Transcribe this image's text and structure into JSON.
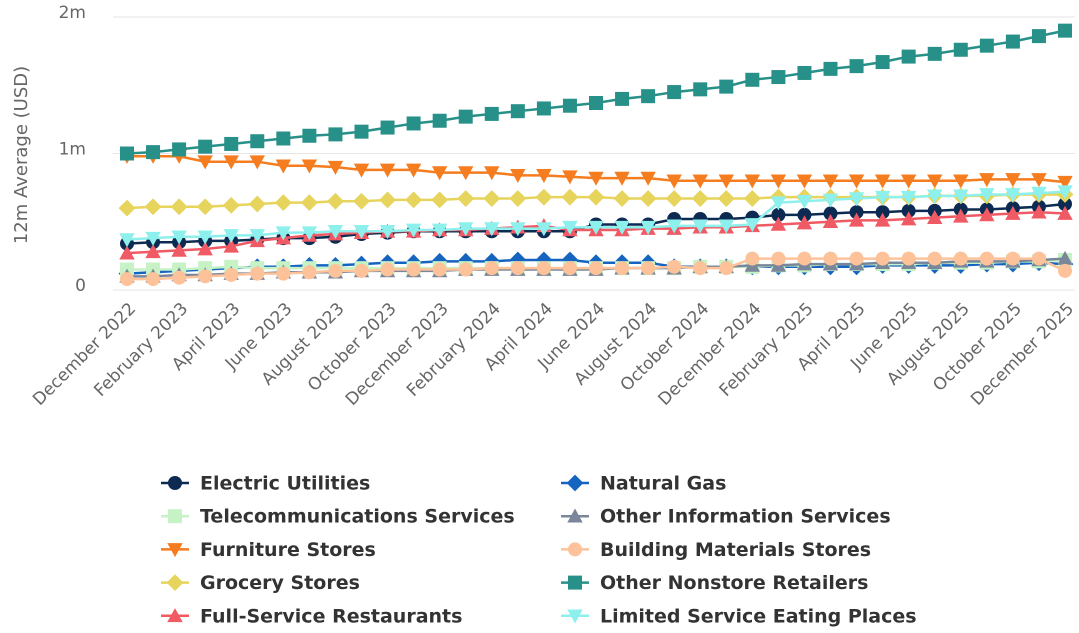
{
  "chart_data": {
    "type": "line",
    "y_label": "12m Average (USD)",
    "categories": [
      "December 2022",
      null,
      "February 2023",
      null,
      "April 2023",
      null,
      "June 2023",
      null,
      "August 2023",
      null,
      "October 2023",
      null,
      "December 2023",
      null,
      "February 2024",
      null,
      "April 2024",
      null,
      "June 2024",
      null,
      "August 2024",
      null,
      "October 2024",
      null,
      "December 2024",
      null,
      "February 2025",
      null,
      "April 2025",
      null,
      "June 2025",
      null,
      "August 2025",
      null,
      "October 2025",
      null,
      "December 2025"
    ],
    "ylim": [
      0,
      2000000
    ],
    "yticks": [
      0,
      {
        "value": 1000000,
        "label": "1m"
      },
      {
        "value": 2000000,
        "label": "2m"
      }
    ],
    "grid": true,
    "legend": "bottom",
    "series": [
      {
        "name": "Electric Utilities",
        "color": "#0d2b52",
        "marker": "circle",
        "values": [
          340000,
          350000,
          350000,
          360000,
          360000,
          370000,
          380000,
          380000,
          390000,
          410000,
          420000,
          430000,
          430000,
          430000,
          430000,
          430000,
          430000,
          430000,
          480000,
          480000,
          480000,
          520000,
          520000,
          520000,
          530000,
          550000,
          550000,
          560000,
          570000,
          570000,
          580000,
          580000,
          590000,
          590000,
          600000,
          610000,
          630000
        ]
      },
      {
        "name": "Natural Gas",
        "color": "#1565c0",
        "marker": "diamond",
        "values": [
          120000,
          130000,
          140000,
          150000,
          160000,
          170000,
          170000,
          180000,
          180000,
          190000,
          200000,
          200000,
          210000,
          210000,
          210000,
          220000,
          220000,
          220000,
          200000,
          200000,
          200000,
          170000,
          170000,
          170000,
          170000,
          170000,
          170000,
          170000,
          170000,
          180000,
          180000,
          180000,
          180000,
          190000,
          190000,
          200000,
          190000
        ]
      },
      {
        "name": "Telecommunications Services",
        "color": "#c6f2c6",
        "marker": "square",
        "values": [
          150000,
          150000,
          150000,
          160000,
          170000,
          160000,
          160000,
          160000,
          160000,
          160000,
          160000,
          160000,
          160000,
          160000,
          160000,
          160000,
          160000,
          160000,
          160000,
          160000,
          160000,
          160000,
          170000,
          170000,
          170000,
          180000,
          180000,
          190000,
          190000,
          190000,
          190000,
          200000,
          200000,
          200000,
          210000,
          210000,
          220000
        ]
      },
      {
        "name": "Other Information Services",
        "color": "#7a8699",
        "marker": "triangle",
        "values": [
          100000,
          100000,
          110000,
          110000,
          120000,
          120000,
          130000,
          130000,
          130000,
          140000,
          140000,
          140000,
          140000,
          150000,
          150000,
          150000,
          150000,
          150000,
          150000,
          160000,
          160000,
          160000,
          170000,
          170000,
          180000,
          180000,
          190000,
          190000,
          190000,
          200000,
          200000,
          200000,
          210000,
          210000,
          210000,
          220000,
          230000
        ]
      },
      {
        "name": "Furniture Stores",
        "color": "#f57c1f",
        "marker": "triangle-down",
        "values": [
          980000,
          980000,
          980000,
          940000,
          940000,
          940000,
          910000,
          910000,
          900000,
          880000,
          880000,
          880000,
          860000,
          860000,
          860000,
          840000,
          840000,
          830000,
          820000,
          820000,
          820000,
          800000,
          800000,
          800000,
          800000,
          800000,
          800000,
          800000,
          800000,
          800000,
          800000,
          800000,
          800000,
          810000,
          810000,
          810000,
          790000
        ]
      },
      {
        "name": "Building Materials Stores",
        "color": "#fdc299",
        "marker": "circle",
        "values": [
          80000,
          80000,
          90000,
          100000,
          110000,
          120000,
          120000,
          130000,
          140000,
          140000,
          150000,
          150000,
          150000,
          150000,
          160000,
          160000,
          160000,
          160000,
          160000,
          160000,
          160000,
          170000,
          160000,
          160000,
          230000,
          230000,
          230000,
          230000,
          230000,
          230000,
          230000,
          230000,
          230000,
          230000,
          230000,
          230000,
          140000
        ]
      },
      {
        "name": "Grocery Stores",
        "color": "#e6d45c",
        "marker": "diamond",
        "values": [
          600000,
          610000,
          610000,
          610000,
          620000,
          630000,
          640000,
          640000,
          650000,
          650000,
          660000,
          660000,
          660000,
          670000,
          670000,
          670000,
          680000,
          680000,
          680000,
          670000,
          670000,
          670000,
          670000,
          670000,
          670000,
          680000,
          680000,
          680000,
          680000,
          680000,
          680000,
          690000,
          690000,
          690000,
          700000,
          700000,
          700000
        ]
      },
      {
        "name": "Other Nonstore Retailers",
        "color": "#279088",
        "marker": "square",
        "values": [
          1000000,
          1010000,
          1030000,
          1050000,
          1070000,
          1090000,
          1110000,
          1130000,
          1140000,
          1160000,
          1190000,
          1220000,
          1240000,
          1270000,
          1290000,
          1310000,
          1330000,
          1350000,
          1370000,
          1400000,
          1420000,
          1450000,
          1470000,
          1490000,
          1540000,
          1560000,
          1590000,
          1620000,
          1640000,
          1670000,
          1710000,
          1730000,
          1760000,
          1790000,
          1820000,
          1860000,
          1900000
        ]
      },
      {
        "name": "Full-Service Restaurants",
        "color": "#f05a64",
        "marker": "triangle",
        "values": [
          270000,
          280000,
          290000,
          300000,
          320000,
          360000,
          380000,
          400000,
          410000,
          420000,
          430000,
          430000,
          440000,
          440000,
          450000,
          460000,
          470000,
          440000,
          440000,
          440000,
          450000,
          450000,
          460000,
          460000,
          470000,
          480000,
          490000,
          500000,
          510000,
          510000,
          520000,
          530000,
          540000,
          550000,
          560000,
          570000,
          560000
        ]
      },
      {
        "name": "Limited Service Eating Places",
        "color": "#8ef0ec",
        "marker": "triangle-down",
        "values": [
          370000,
          380000,
          390000,
          390000,
          400000,
          400000,
          420000,
          420000,
          430000,
          430000,
          430000,
          440000,
          440000,
          450000,
          450000,
          450000,
          450000,
          460000,
          460000,
          460000,
          460000,
          470000,
          470000,
          470000,
          480000,
          640000,
          650000,
          660000,
          670000,
          680000,
          680000,
          690000,
          690000,
          700000,
          700000,
          710000,
          720000
        ]
      }
    ]
  }
}
